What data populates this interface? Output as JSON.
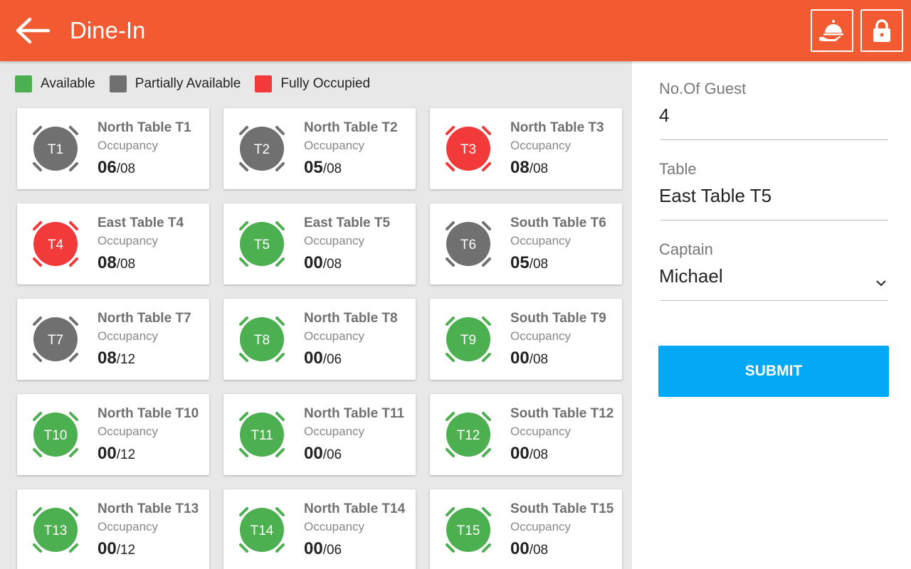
{
  "header": {
    "title": "Dine-In",
    "back_icon": "arrow-left-icon",
    "buttons": [
      {
        "icon": "serving-dish-icon"
      },
      {
        "icon": "lock-icon"
      }
    ],
    "color": "#f25a32"
  },
  "legend": [
    {
      "label": "Available",
      "color": "#4caf50"
    },
    {
      "label": "Partially Available",
      "color": "#707070"
    },
    {
      "label": "Fully Occupied",
      "color": "#f23a3a"
    }
  ],
  "tables": [
    {
      "code": "T1",
      "name": "North Table T1",
      "occupancy_label": "Occupancy",
      "occupied": "06",
      "capacity": "/08",
      "status": "partial"
    },
    {
      "code": "T2",
      "name": "North Table T2",
      "occupancy_label": "Occupancy",
      "occupied": "05",
      "capacity": "/08",
      "status": "partial"
    },
    {
      "code": "T3",
      "name": "North Table T3",
      "occupancy_label": "Occupancy",
      "occupied": "08",
      "capacity": "/08",
      "status": "full"
    },
    {
      "code": "T4",
      "name": "East Table T4",
      "occupancy_label": "Occupancy",
      "occupied": "08",
      "capacity": "/08",
      "status": "full"
    },
    {
      "code": "T5",
      "name": "East Table T5",
      "occupancy_label": "Occupancy",
      "occupied": "00",
      "capacity": "/08",
      "status": "available"
    },
    {
      "code": "T6",
      "name": "South Table T6",
      "occupancy_label": "Occupancy",
      "occupied": "05",
      "capacity": "/08",
      "status": "partial"
    },
    {
      "code": "T7",
      "name": "North Table T7",
      "occupancy_label": "Occupancy",
      "occupied": "08",
      "capacity": "/12",
      "status": "partial"
    },
    {
      "code": "T8",
      "name": "North Table T8",
      "occupancy_label": "Occupancy",
      "occupied": "00",
      "capacity": "/06",
      "status": "available"
    },
    {
      "code": "T9",
      "name": "South Table T9",
      "occupancy_label": "Occupancy",
      "occupied": "00",
      "capacity": "/08",
      "status": "available"
    },
    {
      "code": "T10",
      "name": "North Table T10",
      "occupancy_label": "Occupancy",
      "occupied": "00",
      "capacity": "/12",
      "status": "available"
    },
    {
      "code": "T11",
      "name": "North Table T11",
      "occupancy_label": "Occupancy",
      "occupied": "00",
      "capacity": "/06",
      "status": "available"
    },
    {
      "code": "T12",
      "name": "South Table T12",
      "occupancy_label": "Occupancy",
      "occupied": "00",
      "capacity": "/08",
      "status": "available"
    },
    {
      "code": "T13",
      "name": "North Table T13",
      "occupancy_label": "Occupancy",
      "occupied": "00",
      "capacity": "/12",
      "status": "available"
    },
    {
      "code": "T14",
      "name": "North Table T14",
      "occupancy_label": "Occupancy",
      "occupied": "00",
      "capacity": "/06",
      "status": "available"
    },
    {
      "code": "T15",
      "name": "South Table T15",
      "occupancy_label": "Occupancy",
      "occupied": "00",
      "capacity": "/08",
      "status": "available"
    }
  ],
  "form": {
    "guests_label": "No.Of Guest",
    "guests_value": "4",
    "table_label": "Table",
    "table_value": "East Table T5",
    "captain_label": "Captain",
    "captain_value": "Michael",
    "submit_label": "SUBMIT",
    "submit_color": "#03a9f4"
  }
}
